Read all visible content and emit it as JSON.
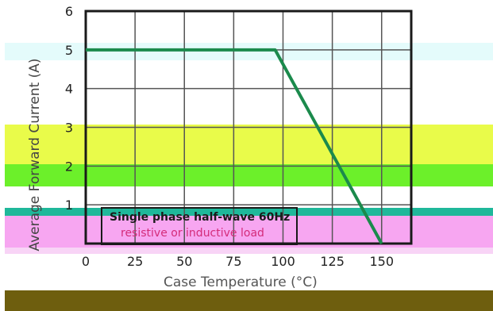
{
  "chart_data": {
    "type": "line",
    "title": "",
    "xlabel": "Case Temperature (°C)",
    "ylabel": "Average Forward Current (A)",
    "xlim": [
      0,
      165
    ],
    "ylim": [
      0,
      6
    ],
    "x_ticks": [
      {
        "value": 0,
        "label": "0"
      },
      {
        "value": 25,
        "label": "25"
      },
      {
        "value": 50,
        "label": "50"
      },
      {
        "value": 75,
        "label": "75"
      },
      {
        "value": 100,
        "label": "100"
      },
      {
        "value": 125,
        "label": "125"
      },
      {
        "value": 150,
        "label": "150"
      }
    ],
    "y_ticks": [
      {
        "value": 1,
        "label": "1"
      },
      {
        "value": 2,
        "label": "2"
      },
      {
        "value": 3,
        "label": "3"
      },
      {
        "value": 4,
        "label": "4"
      },
      {
        "value": 5,
        "label": "5"
      },
      {
        "value": 6,
        "label": "6"
      }
    ],
    "grid": true,
    "series": [
      {
        "x": [
          0,
          96,
          150
        ],
        "y": [
          5,
          5,
          0
        ],
        "color": "#1b8a4c"
      }
    ],
    "annotations": [
      "Single phase half-wave 60Hz",
      "resistive or inductive load"
    ],
    "colors": {
      "frame": "#1a1a1a",
      "grid": "#555555",
      "curve": "#1b8a4c",
      "band_cyan": "#e4fbfb",
      "band_yellow": "#e9fb4a",
      "band_green": "#6cf02a",
      "band_teal": "#1fb89a",
      "band_pink": "#f7a6f1",
      "band_pink_light": "#f8d4f6",
      "band_olive": "#6e5e0e",
      "annotation_text": "#d42c7a"
    }
  }
}
